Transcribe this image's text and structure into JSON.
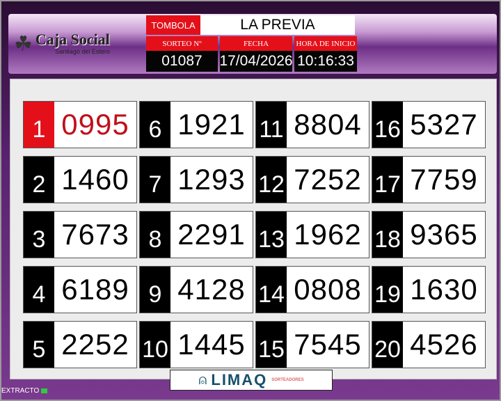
{
  "header": {
    "logo_name": "Caja Social",
    "logo_sub": "Santiago del Estero",
    "game_label": "TOMBOLA",
    "game_name": "LA PREVIA",
    "draw_label": "SORTEO Nº",
    "draw_value": "01087",
    "date_label": "FECHA",
    "date_value": "17/04/2026",
    "time_label": "HORA DE INICIO",
    "time_value": "10:16:33"
  },
  "results": [
    {
      "pos": "1",
      "number": "0995"
    },
    {
      "pos": "2",
      "number": "1460"
    },
    {
      "pos": "3",
      "number": "7673"
    },
    {
      "pos": "4",
      "number": "6189"
    },
    {
      "pos": "5",
      "number": "2252"
    },
    {
      "pos": "6",
      "number": "1921"
    },
    {
      "pos": "7",
      "number": "1293"
    },
    {
      "pos": "8",
      "number": "2291"
    },
    {
      "pos": "9",
      "number": "4128"
    },
    {
      "pos": "10",
      "number": "1445"
    },
    {
      "pos": "11",
      "number": "8804"
    },
    {
      "pos": "12",
      "number": "7252"
    },
    {
      "pos": "13",
      "number": "1962"
    },
    {
      "pos": "14",
      "number": "0808"
    },
    {
      "pos": "15",
      "number": "7545"
    },
    {
      "pos": "16",
      "number": "5327"
    },
    {
      "pos": "17",
      "number": "7759"
    },
    {
      "pos": "18",
      "number": "9365"
    },
    {
      "pos": "19",
      "number": "1630"
    },
    {
      "pos": "20",
      "number": "4526"
    }
  ],
  "footer": {
    "brand": "LIMAQ",
    "brand_sub": "SORTEADORES",
    "status": "EXTRACTO"
  },
  "colors": {
    "accent": "#e3101a",
    "highlight_number": "#c0101a",
    "background": "#5a2270"
  }
}
